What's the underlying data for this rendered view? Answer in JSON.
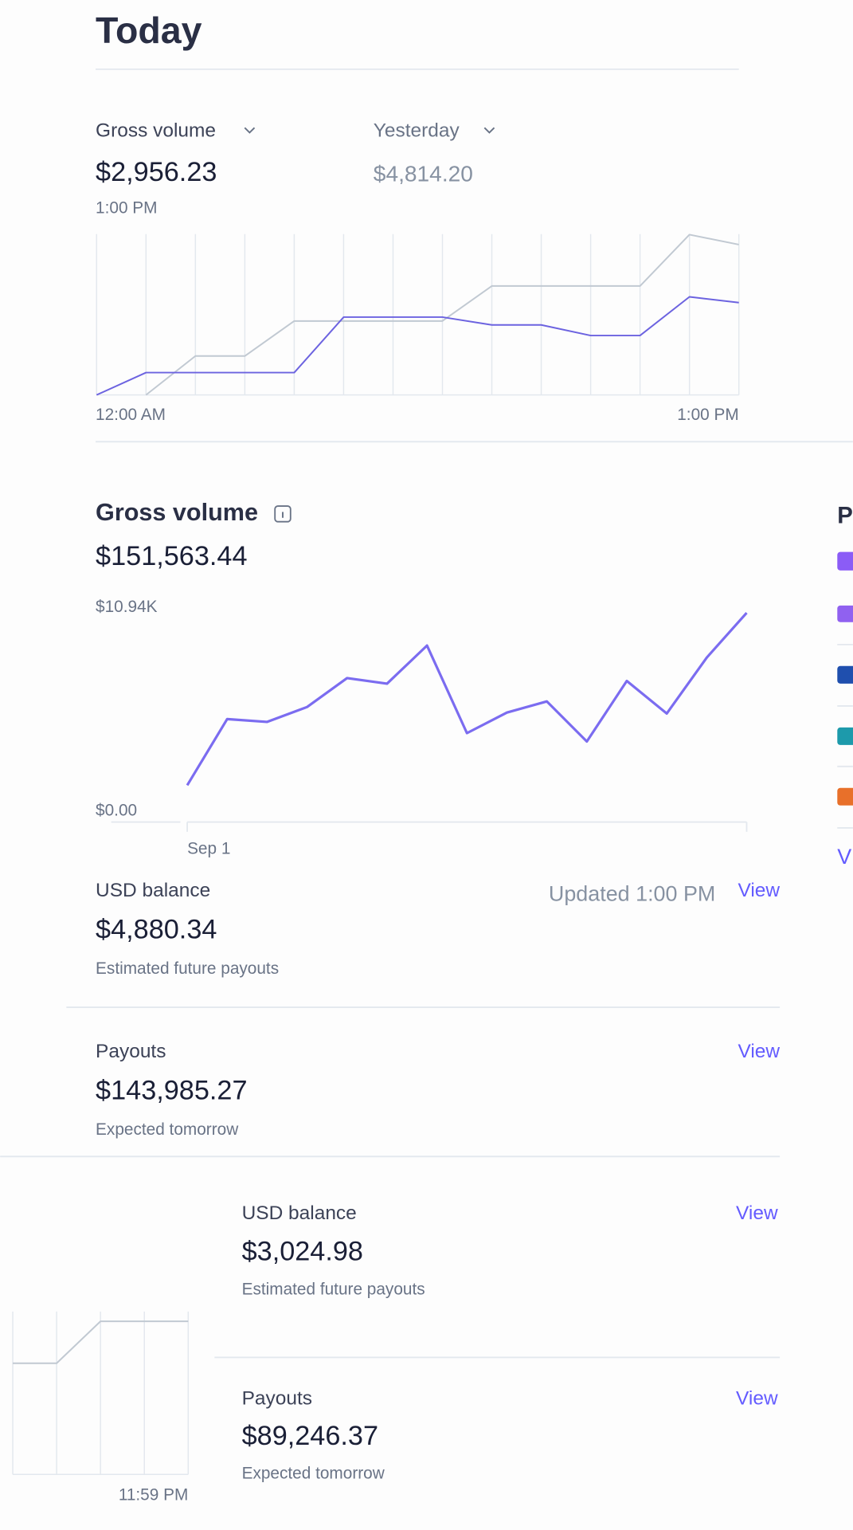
{
  "header": {
    "title": "Today"
  },
  "today_summary": {
    "metric_label": "Gross volume",
    "metric_value": "$2,956.23",
    "time": "1:00 PM",
    "compare_label": "Yesterday",
    "compare_value": "$4,814.20"
  },
  "chart_data": [
    {
      "type": "line",
      "categories": [
        "12:00 AM",
        null,
        null,
        null,
        null,
        null,
        null,
        null,
        null,
        null,
        null,
        null,
        null,
        "1:00 PM"
      ],
      "series": [
        {
          "color": "#c1c9d2",
          "values": [
            null,
            0,
            1245,
            1245,
            2365,
            2365,
            2365,
            2365,
            3485,
            3485,
            3485,
            3485,
            5130,
            4814.2
          ]
        },
        {
          "color": "#6c63e0",
          "values": [
            0,
            715,
            715,
            715,
            715,
            2490,
            2490,
            2490,
            2240,
            2240,
            1900,
            1900,
            3140,
            2956.23
          ]
        }
      ],
      "ylim": [
        0,
        5150
      ],
      "grid": true
    },
    {
      "type": "line",
      "categories": [
        "Sep 1",
        null,
        null,
        null,
        null,
        null,
        null,
        null,
        null,
        null,
        null,
        null,
        null,
        null,
        null
      ],
      "series": [
        {
          "color": "#7b6cf0",
          "values": [
            1400,
            4950,
            4800,
            5600,
            7150,
            6850,
            8900,
            4200,
            5300,
            5900,
            3750,
            7000,
            5250,
            8250,
            10650
          ]
        }
      ],
      "ylim": [
        0,
        10940
      ],
      "yticks": [
        {
          "value": 0,
          "label": "$0.00"
        },
        {
          "value": 10940,
          "label": "$10.94K"
        }
      ],
      "grid": false
    },
    {
      "type": "line",
      "categories": [
        null,
        null,
        null,
        null,
        "11:59 PM"
      ],
      "series": [
        {
          "color": "#c1c9d2",
          "values": [
            114,
            114,
            157,
            157,
            157
          ]
        }
      ],
      "ylim": [
        0,
        170
      ],
      "grid": true
    }
  ],
  "gross_volume": {
    "title": "Gross volume",
    "total": "$151,563.44"
  },
  "balances": [
    {
      "label": "USD balance",
      "updated": "Updated 1:00 PM",
      "action": "View",
      "value": "$4,880.34",
      "caption": "Estimated future payouts"
    },
    {
      "label": "Payouts",
      "action": "View",
      "value": "$143,985.27",
      "caption": "Expected tomorrow"
    },
    {
      "label": "USD balance",
      "action": "View",
      "value": "$3,024.98",
      "caption": "Estimated future payouts"
    },
    {
      "label": "Payouts",
      "action": "View",
      "value": "$89,246.37",
      "caption": "Expected tomorrow"
    }
  ],
  "sidebar": {
    "heading": "P",
    "link": "V"
  }
}
